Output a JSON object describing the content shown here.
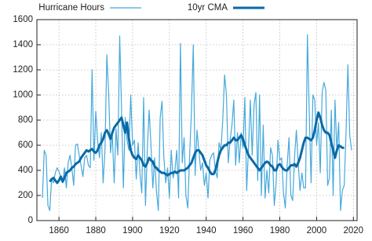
{
  "chart_data": {
    "type": "line",
    "x": [
      1851,
      1852,
      1853,
      1854,
      1855,
      1856,
      1857,
      1858,
      1859,
      1860,
      1861,
      1862,
      1863,
      1864,
      1865,
      1866,
      1867,
      1868,
      1869,
      1870,
      1871,
      1872,
      1873,
      1874,
      1875,
      1876,
      1877,
      1878,
      1879,
      1880,
      1881,
      1882,
      1883,
      1884,
      1885,
      1886,
      1887,
      1888,
      1889,
      1890,
      1891,
      1892,
      1893,
      1894,
      1895,
      1896,
      1897,
      1898,
      1899,
      1900,
      1901,
      1902,
      1903,
      1904,
      1905,
      1906,
      1907,
      1908,
      1909,
      1910,
      1911,
      1912,
      1913,
      1914,
      1915,
      1916,
      1917,
      1918,
      1919,
      1920,
      1921,
      1922,
      1923,
      1924,
      1925,
      1926,
      1927,
      1928,
      1929,
      1930,
      1931,
      1932,
      1933,
      1934,
      1935,
      1936,
      1937,
      1938,
      1939,
      1940,
      1941,
      1942,
      1943,
      1944,
      1945,
      1946,
      1947,
      1948,
      1949,
      1950,
      1951,
      1952,
      1953,
      1954,
      1955,
      1956,
      1957,
      1958,
      1959,
      1960,
      1961,
      1962,
      1963,
      1964,
      1965,
      1966,
      1967,
      1968,
      1969,
      1970,
      1971,
      1972,
      1973,
      1974,
      1975,
      1976,
      1977,
      1978,
      1979,
      1980,
      1981,
      1982,
      1983,
      1984,
      1985,
      1986,
      1987,
      1988,
      1989,
      1990,
      1991,
      1992,
      1993,
      1994,
      1995,
      1996,
      1997,
      1998,
      1999,
      2000,
      2001,
      2002,
      2003,
      2004,
      2005,
      2006,
      2007,
      2008,
      2009,
      2010,
      2011,
      2012,
      2013,
      2014,
      2015,
      2016,
      2017,
      2018,
      2019
    ],
    "series": [
      {
        "name": "Hurricane Hours",
        "color": "#45a9dc",
        "width": 1.2,
        "values": [
          180,
          560,
          520,
          120,
          80,
          330,
          300,
          380,
          420,
          390,
          350,
          300,
          420,
          260,
          460,
          520,
          420,
          280,
          600,
          610,
          520,
          440,
          350,
          500,
          520,
          440,
          420,
          1200,
          480,
          870,
          640,
          500,
          700,
          300,
          560,
          1320,
          1020,
          540,
          680,
          300,
          730,
          520,
          1470,
          880,
          260,
          820,
          640,
          560,
          1000,
          600,
          640,
          330,
          620,
          380,
          220,
          980,
          120,
          560,
          880,
          600,
          260,
          500,
          230,
          80,
          820,
          950,
          500,
          300,
          420,
          180,
          560,
          340,
          400,
          560,
          180,
          1410,
          460,
          660,
          200,
          100,
          520,
          880,
          1400,
          360,
          720,
          560,
          400,
          460,
          280,
          380,
          180,
          480,
          520,
          540,
          400,
          340,
          620,
          560,
          800,
          1160,
          1000,
          460,
          640,
          760,
          960,
          440,
          700,
          460,
          700,
          580,
          980,
          240,
          580,
          960,
          520,
          920,
          1020,
          320,
          1000,
          200,
          760,
          180,
          400,
          220,
          580,
          520,
          120,
          300,
          640,
          480,
          500,
          220,
          100,
          440,
          660,
          200,
          160,
          500,
          720,
          460,
          240,
          380,
          260,
          260,
          1480,
          860,
          300,
          1000,
          960,
          600,
          780,
          380,
          1020,
          1100,
          1040,
          280,
          340,
          880,
          200,
          960,
          560,
          780,
          80,
          240,
          280,
          700,
          1240,
          680,
          560
        ]
      },
      {
        "name": "10yr CMA",
        "color": "#0a6aa6",
        "width": 3,
        "values": [
          null,
          null,
          null,
          null,
          310,
          330,
          340,
          320,
          300,
          320,
          350,
          310,
          340,
          380,
          390,
          400,
          420,
          430,
          450,
          460,
          470,
          500,
          520,
          540,
          560,
          550,
          560,
          570,
          550,
          540,
          560,
          600,
          620,
          650,
          700,
          720,
          690,
          650,
          700,
          740,
          760,
          780,
          800,
          820,
          760,
          700,
          780,
          650,
          560,
          520,
          500,
          490,
          520,
          500,
          480,
          440,
          430,
          460,
          500,
          480,
          470,
          430,
          420,
          400,
          390,
          380,
          380,
          370,
          360,
          370,
          380,
          380,
          390,
          380,
          390,
          400,
          400,
          400,
          410,
          420,
          440,
          460,
          500,
          540,
          560,
          560,
          540,
          520,
          480,
          440,
          420,
          390,
          370,
          370,
          400,
          460,
          520,
          560,
          580,
          600,
          600,
          620,
          620,
          640,
          660,
          640,
          640,
          660,
          680,
          650,
          600,
          560,
          520,
          500,
          480,
          460,
          440,
          420,
          400,
          420,
          440,
          460,
          470,
          460,
          440,
          430,
          400,
          400,
          440,
          450,
          430,
          410,
          400,
          400,
          420,
          440,
          440,
          450,
          430,
          460,
          500,
          560,
          620,
          660,
          660,
          650,
          640,
          660,
          720,
          800,
          860,
          820,
          760,
          720,
          700,
          700,
          680,
          620,
          560,
          500,
          560,
          600,
          590,
          580,
          580,
          null,
          null,
          null,
          null
        ]
      }
    ],
    "xlim": [
      1848,
      2022
    ],
    "ylim": [
      0,
      1600
    ],
    "xticks": [
      1860,
      1880,
      1900,
      1920,
      1940,
      1960,
      1980,
      2000,
      2020
    ],
    "yticks": [
      0,
      200,
      400,
      600,
      800,
      1000,
      1200,
      1400,
      1600
    ],
    "grid": true
  }
}
